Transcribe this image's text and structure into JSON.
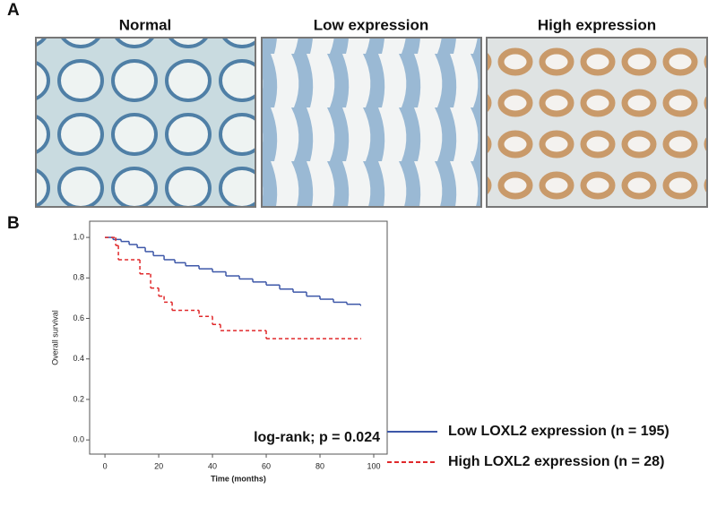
{
  "panel_a": {
    "label": "A",
    "titles": [
      "Normal",
      "Low expression",
      "High expression"
    ]
  },
  "panel_b": {
    "label": "B"
  },
  "chart_data": {
    "type": "step",
    "xlabel": "Time (months)",
    "ylabel": "Overall survival",
    "annotation": "log-rank; p = 0.024",
    "xlim": [
      -5.7,
      105
    ],
    "ylim": [
      -0.07,
      1.08
    ],
    "xticks": [
      0,
      20,
      40,
      60,
      80,
      100
    ],
    "yticks": [
      {
        "value": 0,
        "label": "0.0"
      },
      0.2,
      0.4,
      0.6,
      0.8,
      {
        "value": 1,
        "label": "1.0"
      }
    ],
    "series": [
      {
        "name": "Low LOXL2 expression (n = 195)",
        "color": "#3d57a8",
        "dash": false,
        "x": [
          0,
          3,
          6,
          9,
          12,
          15,
          18,
          22,
          26,
          30,
          35,
          40,
          45,
          50,
          55,
          60,
          65,
          70,
          75,
          80,
          85,
          90,
          95
        ],
        "values": [
          1.0,
          0.99,
          0.98,
          0.965,
          0.95,
          0.93,
          0.91,
          0.89,
          0.875,
          0.86,
          0.845,
          0.83,
          0.81,
          0.795,
          0.78,
          0.765,
          0.745,
          0.73,
          0.71,
          0.695,
          0.68,
          0.67,
          0.665
        ]
      },
      {
        "name": "High LOXL2 expression (n = 28)",
        "color": "#e0282a",
        "dash": true,
        "x": [
          0,
          4,
          5,
          13,
          17,
          20,
          22,
          25,
          35,
          40,
          43,
          60,
          95
        ],
        "values": [
          1.0,
          0.96,
          0.89,
          0.82,
          0.75,
          0.71,
          0.68,
          0.64,
          0.61,
          0.57,
          0.54,
          0.5,
          0.5
        ]
      }
    ]
  }
}
